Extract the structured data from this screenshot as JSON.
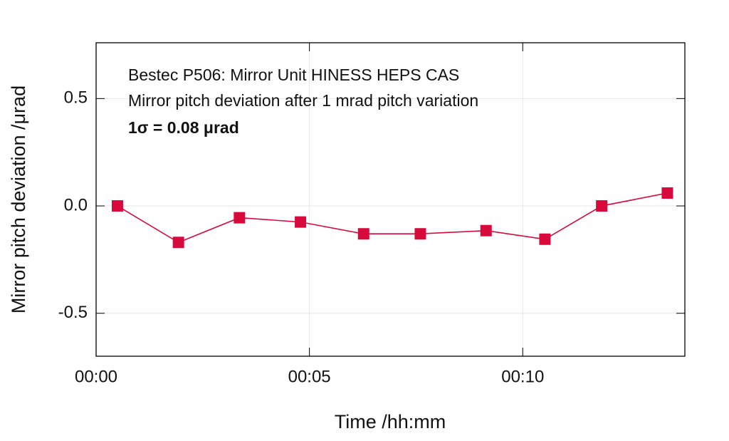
{
  "chart_data": {
    "type": "line",
    "annotations": [
      "Bestec P506: Mirror Unit HINESS HEPS CAS",
      "Mirror pitch deviation after 1 mrad pitch variation",
      "1σ = 0.08 μrad"
    ],
    "x_label": "Time /hh:mm",
    "y_label": "Mirror pitch deviation /μrad",
    "x": [
      0.5,
      1.93,
      3.36,
      4.79,
      6.27,
      7.6,
      9.14,
      10.52,
      11.85,
      13.39
    ],
    "series": [
      {
        "color": "#d80a3c",
        "values": [
          0.0,
          -0.17,
          -0.055,
          -0.075,
          -0.13,
          -0.13,
          -0.115,
          -0.155,
          0.0,
          0.06
        ]
      }
    ],
    "xlim": [
      0,
      13.8
    ],
    "xticks": [
      {
        "value": 0,
        "label": "00:00"
      },
      {
        "value": 5,
        "label": "00:05"
      },
      {
        "value": 10,
        "label": "00:10"
      }
    ],
    "ylim": [
      -0.7,
      0.76
    ],
    "yticks": [
      {
        "value": -0.5,
        "label": "-0.5"
      },
      {
        "value": 0,
        "label": "0.0"
      },
      {
        "value": 0.5,
        "label": "0.5"
      }
    ],
    "grid": true
  }
}
